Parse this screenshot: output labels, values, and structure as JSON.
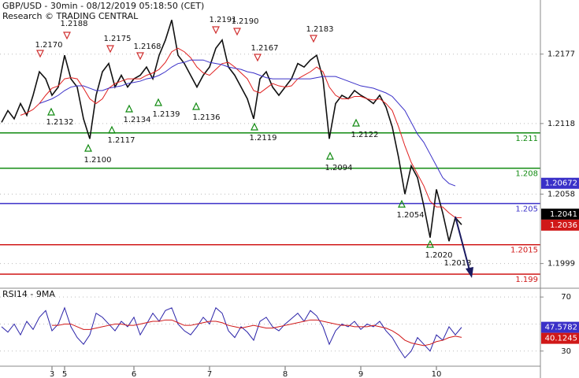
{
  "chart_data": [
    {
      "type": "line",
      "title": "GBP/USD - 30min - 08/12/2019 05:18:50 (CET)",
      "subtitle": "Research © TRADING CENTRAL",
      "categories": [
        null,
        null,
        null,
        null,
        null,
        null,
        null,
        null,
        "3",
        null,
        "5",
        null,
        null,
        null,
        null,
        null,
        null,
        null,
        null,
        null,
        null,
        "6",
        null,
        null,
        null,
        null,
        null,
        null,
        null,
        null,
        null,
        null,
        null,
        "7",
        null,
        null,
        null,
        null,
        null,
        null,
        null,
        null,
        null,
        null,
        null,
        "8",
        null,
        null,
        null,
        null,
        null,
        null,
        null,
        null,
        null,
        null,
        null,
        "9",
        null,
        null,
        null,
        null,
        null,
        null,
        null,
        null,
        null,
        null,
        null,
        "10",
        null,
        null,
        null,
        null
      ],
      "ylim": [
        1.1978,
        1.2223
      ],
      "yticks": [
        1.2177,
        1.2118,
        1.2058,
        1.1999
      ],
      "grid": true,
      "series": [
        {
          "name": "price",
          "color": "#111111",
          "values": [
            1.2119,
            1.2129,
            1.2122,
            1.2135,
            1.2125,
            1.2142,
            1.2162,
            1.2156,
            1.2142,
            1.2149,
            1.2176,
            1.2156,
            1.2149,
            1.2122,
            1.2105,
            1.2142,
            1.2162,
            1.2169,
            1.2149,
            1.2159,
            1.2149,
            1.2156,
            1.2159,
            1.2166,
            1.2156,
            1.2176,
            1.2189,
            1.2206,
            1.2176,
            1.2169,
            1.2159,
            1.2149,
            1.2159,
            1.2166,
            1.2182,
            1.2189,
            1.2166,
            1.2159,
            1.2149,
            1.2139,
            1.2122,
            1.2156,
            1.2162,
            1.2149,
            1.2142,
            1.2149,
            1.2156,
            1.2169,
            1.2166,
            1.2172,
            1.2176,
            1.2156,
            1.2105,
            1.2135,
            1.2142,
            1.2139,
            1.2146,
            1.2142,
            1.2139,
            1.2135,
            1.2142,
            1.2132,
            1.2115,
            1.2089,
            1.2058,
            1.2082,
            1.2072,
            1.2048,
            1.2021,
            1.2062,
            1.2042,
            1.2018,
            1.2038,
            1.2032
          ]
        },
        {
          "name": "ma-fast",
          "color": "#e02020",
          "values": [
            null,
            null,
            null,
            1.2125,
            1.2127,
            1.213,
            1.2135,
            1.2142,
            1.2148,
            1.215,
            1.2156,
            1.2157,
            1.2156,
            1.2148,
            1.2139,
            1.2135,
            1.2139,
            1.2148,
            1.2152,
            1.2154,
            1.2156,
            1.2156,
            1.2156,
            1.2159,
            1.2161,
            1.2164,
            1.217,
            1.2179,
            1.2182,
            1.2179,
            1.2174,
            1.2166,
            1.2161,
            1.2159,
            1.2164,
            1.2169,
            1.217,
            1.2166,
            1.2161,
            1.2156,
            1.2146,
            1.2144,
            1.2148,
            1.2152,
            1.215,
            1.2149,
            1.215,
            1.2156,
            1.2159,
            1.2162,
            1.2166,
            1.2162,
            1.2149,
            1.2142,
            1.2139,
            1.2139,
            1.2141,
            1.2141,
            1.2139,
            1.2138,
            1.2139,
            1.2135,
            1.2129,
            1.2115,
            1.2099,
            1.2085,
            1.2075,
            1.2065,
            1.2052,
            1.2047,
            1.2047,
            1.2042,
            1.2038,
            1.2038
          ]
        },
        {
          "name": "ma-slow",
          "color": "#3a30c8",
          "values": [
            null,
            null,
            null,
            null,
            null,
            null,
            1.2135,
            1.2137,
            1.2139,
            1.2142,
            1.2146,
            1.2149,
            1.215,
            1.215,
            1.2148,
            1.2146,
            1.2146,
            1.2148,
            1.2149,
            1.215,
            1.2152,
            1.2153,
            1.2154,
            1.2156,
            1.2157,
            1.2159,
            1.2162,
            1.2166,
            1.2169,
            1.217,
            1.2172,
            1.2172,
            1.2172,
            1.217,
            1.2169,
            1.2168,
            1.2166,
            1.2165,
            1.2164,
            1.2162,
            1.2161,
            1.2159,
            1.2157,
            1.2156,
            1.2156,
            1.2156,
            1.2156,
            1.2156,
            1.2156,
            1.2156,
            1.2157,
            1.2158,
            1.2158,
            1.2158,
            1.2156,
            1.2154,
            1.2152,
            1.215,
            1.2149,
            1.2148,
            1.2146,
            1.2144,
            1.2141,
            1.2135,
            1.2129,
            1.2119,
            1.2109,
            1.2102,
            1.2092,
            1.2082,
            1.2072,
            1.2067,
            1.2065,
            null
          ]
        }
      ],
      "levels": [
        {
          "value": 1.211,
          "color": "#108a10"
        },
        {
          "value": 1.208,
          "color": "#108a10"
        },
        {
          "value": 1.205,
          "color": "#3a30c8"
        },
        {
          "value": 1.2015,
          "color": "#d01818"
        },
        {
          "value": 1.199,
          "color": "#d01818"
        }
      ],
      "markers": [
        {
          "value": 1.20672,
          "color": "#3a30c8"
        },
        {
          "value": 1.2041,
          "color": "#000000"
        },
        {
          "value": 1.2036,
          "color": "#d01818"
        }
      ],
      "annotations": [
        "1.2170",
        "1.2188",
        "1.2175",
        "1.2168",
        "1.2191",
        "1.2190",
        "1.2167",
        "1.2183",
        "1.2132",
        "1.2100",
        "1.2117",
        "1.2134",
        "1.2139",
        "1.2136",
        "1.2119",
        "1.2094",
        "1.2122",
        "1.2054",
        "1.2020",
        "1.2013"
      ]
    },
    {
      "type": "line",
      "title": "RSI14 - 9MA",
      "ylim": [
        18.8,
        76.5
      ],
      "yticks": [
        70,
        30
      ],
      "hlines": [
        70,
        50,
        30
      ],
      "series": [
        {
          "name": "rsi",
          "color": "#2a22a8",
          "values": [
            48,
            44,
            50,
            42,
            52,
            46,
            55,
            60,
            45,
            50,
            62,
            48,
            40,
            35,
            42,
            58,
            55,
            50,
            45,
            52,
            48,
            55,
            42,
            50,
            58,
            52,
            60,
            62,
            50,
            45,
            42,
            48,
            55,
            50,
            62,
            58,
            45,
            40,
            48,
            44,
            38,
            52,
            55,
            48,
            45,
            50,
            54,
            58,
            52,
            60,
            56,
            48,
            35,
            45,
            50,
            48,
            52,
            46,
            50,
            48,
            52,
            45,
            40,
            32,
            25,
            30,
            40,
            35,
            30,
            42,
            38,
            48,
            42,
            47.58
          ]
        },
        {
          "name": "rsi-ma",
          "color": "#d01818",
          "values": [
            null,
            null,
            null,
            null,
            null,
            null,
            null,
            null,
            49,
            49,
            50,
            50,
            48,
            46,
            46,
            47,
            48,
            49,
            50,
            50,
            49,
            49,
            50,
            51,
            52,
            52,
            53,
            53,
            51,
            49,
            49,
            50,
            51,
            52,
            52,
            51,
            49,
            48,
            47,
            48,
            49,
            48,
            47,
            47,
            48,
            49,
            50,
            51,
            52,
            53,
            53,
            52,
            51,
            50,
            49,
            49,
            48,
            48,
            48,
            49,
            48,
            47,
            45,
            42,
            38,
            36,
            35,
            34,
            35,
            37,
            38,
            40,
            41,
            40.12
          ]
        }
      ],
      "markers": [
        {
          "value": 47.5782,
          "color": "#3a30c8"
        },
        {
          "value": 40.1245,
          "color": "#d01818"
        }
      ]
    }
  ]
}
